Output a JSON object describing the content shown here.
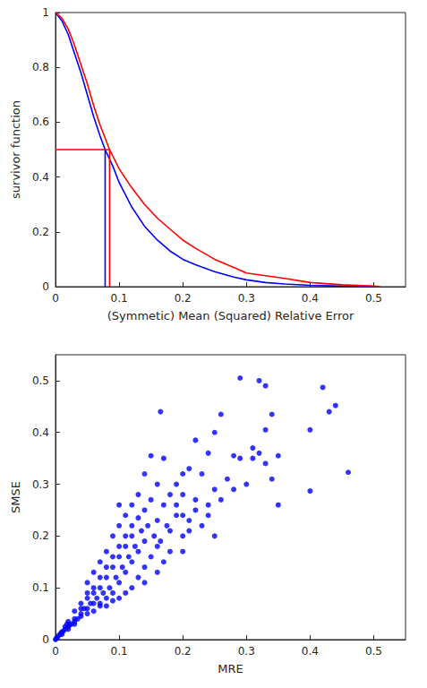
{
  "chart_data": [
    {
      "type": "line",
      "xlabel": "(Symmetic) Mean (Squared) Relative Error",
      "ylabel": "survivor function",
      "xlim": [
        0,
        0.55
      ],
      "xticks": [
        0,
        0.1,
        0.2,
        0.3,
        0.4,
        0.5
      ],
      "ylim": [
        0,
        1
      ],
      "yticks": [
        0,
        0.2,
        0.4,
        0.6,
        0.8,
        1
      ],
      "grid": false,
      "series": [
        {
          "color": "#0000ff",
          "line_style": "solid",
          "x": [
            0,
            0.01,
            0.02,
            0.03,
            0.04,
            0.05,
            0.06,
            0.07,
            0.078,
            0.09,
            0.1,
            0.12,
            0.14,
            0.16,
            0.18,
            0.2,
            0.22,
            0.25,
            0.28,
            0.3,
            0.33,
            0.36,
            0.4,
            0.45,
            0.5
          ],
          "values": [
            1,
            0.97,
            0.92,
            0.85,
            0.78,
            0.7,
            0.62,
            0.55,
            0.5,
            0.44,
            0.38,
            0.29,
            0.22,
            0.17,
            0.13,
            0.1,
            0.08,
            0.055,
            0.035,
            0.025,
            0.015,
            0.01,
            0.005,
            0.002,
            0
          ]
        },
        {
          "color": "#ff0000",
          "line_style": "solid",
          "x": [
            0,
            0.01,
            0.02,
            0.03,
            0.04,
            0.05,
            0.06,
            0.07,
            0.085,
            0.1,
            0.12,
            0.14,
            0.16,
            0.18,
            0.2,
            0.22,
            0.25,
            0.28,
            0.3,
            0.33,
            0.36,
            0.4,
            0.45,
            0.5,
            0.51
          ],
          "values": [
            1,
            0.98,
            0.94,
            0.88,
            0.81,
            0.74,
            0.66,
            0.59,
            0.5,
            0.43,
            0.36,
            0.3,
            0.25,
            0.21,
            0.17,
            0.14,
            0.1,
            0.07,
            0.05,
            0.04,
            0.03,
            0.015,
            0.007,
            0.002,
            0
          ]
        },
        {
          "color": "#0000ff",
          "line_style": "solid",
          "x": [
            0.078,
            0.078
          ],
          "values": [
            0,
            0.5
          ]
        },
        {
          "color": "#ff0000",
          "line_style": "solid",
          "x": [
            0,
            0.085,
            0.085
          ],
          "values": [
            0.5,
            0.5,
            0
          ]
        }
      ]
    },
    {
      "type": "scatter",
      "xlabel": "MRE",
      "ylabel": "SMSE",
      "xlim": [
        0,
        0.55
      ],
      "xticks": [
        0,
        0.1,
        0.2,
        0.3,
        0.4,
        0.5
      ],
      "ylim": [
        0,
        0.55
      ],
      "yticks": [
        0,
        0.1,
        0.2,
        0.3,
        0.4,
        0.5
      ],
      "grid": false,
      "series": [
        {
          "color": "#0000ff",
          "marker": "circle",
          "x": [
            0.29,
            0.32,
            0.33,
            0.42,
            0.44,
            0.43,
            0.4,
            0.4,
            0.46,
            0.165,
            0.34,
            0.33,
            0.26,
            0.25,
            0.31,
            0.32,
            0.31,
            0.33,
            0.35,
            0.29,
            0.28,
            0.34,
            0.35,
            0.3,
            0.27,
            0.28,
            0.22,
            0.24,
            0.21,
            0.2,
            0.23,
            0.25,
            0.24,
            0.26,
            0.19,
            0.18,
            0.2,
            0.22,
            0.15,
            0.17,
            0.14,
            0.16,
            0.15,
            0.17,
            0.19,
            0.21,
            0.23,
            0.25,
            0.22,
            0.12,
            0.13,
            0.14,
            0.16,
            0.18,
            0.2,
            0.11,
            0.1,
            0.12,
            0.14,
            0.16,
            0.18,
            0.1,
            0.09,
            0.11,
            0.13,
            0.15,
            0.17,
            0.08,
            0.1,
            0.12,
            0.14,
            0.2,
            0.07,
            0.09,
            0.11,
            0.13,
            0.16,
            0.06,
            0.08,
            0.1,
            0.12,
            0.14,
            0.05,
            0.07,
            0.09,
            0.11,
            0.05,
            0.06,
            0.08,
            0.1,
            0.04,
            0.06,
            0.07,
            0.09,
            0.03,
            0.04,
            0.05,
            0.06,
            0.08,
            0.02,
            0.03,
            0.04,
            0.05,
            0.07,
            0.01,
            0.015,
            0.02,
            0.025,
            0.03,
            0.035,
            0.005,
            0.01,
            0.015,
            0.02,
            0.03,
            0.045,
            0.055,
            0.065,
            0.075,
            0.085,
            0.095,
            0.105,
            0.115,
            0.125,
            0.135,
            0.145,
            0.155,
            0.165,
            0.175,
            0.19,
            0.2,
            0.21,
            0.24,
            0.13,
            0.12,
            0.11,
            0.1,
            0.09,
            0.08,
            0.07,
            0.06,
            0.05,
            0.04,
            0.003,
            0.008,
            0.012,
            0.018,
            0.022,
            0,
            0.001
          ],
          "values": [
            0.505,
            0.5,
            0.49,
            0.487,
            0.452,
            0.44,
            0.405,
            0.287,
            0.323,
            0.44,
            0.435,
            0.405,
            0.435,
            0.4,
            0.37,
            0.36,
            0.35,
            0.34,
            0.355,
            0.35,
            0.355,
            0.31,
            0.26,
            0.3,
            0.31,
            0.29,
            0.385,
            0.36,
            0.33,
            0.32,
            0.32,
            0.29,
            0.26,
            0.27,
            0.3,
            0.28,
            0.28,
            0.27,
            0.355,
            0.35,
            0.32,
            0.3,
            0.27,
            0.26,
            0.24,
            0.23,
            0.22,
            0.2,
            0.25,
            0.26,
            0.28,
            0.25,
            0.23,
            0.21,
            0.2,
            0.24,
            0.22,
            0.2,
            0.19,
            0.18,
            0.17,
            0.26,
            0.2,
            0.18,
            0.17,
            0.16,
            0.15,
            0.17,
            0.16,
            0.15,
            0.14,
            0.17,
            0.15,
            0.14,
            0.13,
            0.12,
            0.13,
            0.13,
            0.12,
            0.11,
            0.1,
            0.11,
            0.11,
            0.1,
            0.09,
            0.09,
            0.08,
            0.09,
            0.08,
            0.08,
            0.07,
            0.07,
            0.065,
            0.075,
            0.055,
            0.05,
            0.06,
            0.055,
            0.065,
            0.035,
            0.04,
            0.045,
            0.05,
            0.07,
            0.015,
            0.025,
            0.025,
            0.03,
            0.03,
            0.04,
            0.008,
            0.01,
            0.02,
            0.02,
            0.035,
            0.06,
            0.07,
            0.08,
            0.09,
            0.1,
            0.12,
            0.14,
            0.16,
            0.18,
            0.21,
            0.22,
            0.2,
            0.19,
            0.22,
            0.26,
            0.24,
            0.21,
            0.24,
            0.235,
            0.22,
            0.2,
            0.18,
            0.16,
            0.14,
            0.12,
            0.1,
            0.09,
            0.06,
            0.004,
            0.012,
            0.016,
            0.03,
            0.028,
            0,
            0.002
          ]
        }
      ]
    }
  ]
}
